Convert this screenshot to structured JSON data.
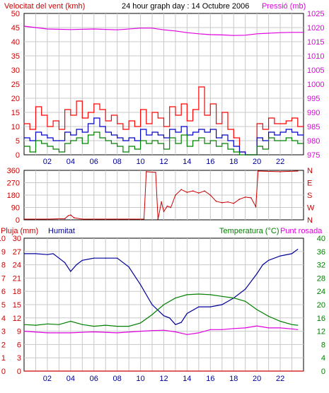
{
  "colors": {
    "background": "#ffffff",
    "grid": "#c8c8c8",
    "wind": "#ff0000",
    "gust": "#ff0000",
    "avg": "#0000c8",
    "low": "#008000",
    "pressure": "#e000e0",
    "dir": "#cc0000",
    "humidity": "#000099",
    "temperature": "#008000",
    "dewpoint": "#e000e0",
    "rain": "#cc0000",
    "axis_text": "#cc0000"
  },
  "chart_data": [
    {
      "type": "line",
      "title": "24 hour graph day : 14 Octubre 2006",
      "left_axis_label": "Velocitat del vent (kmh)",
      "right_axis_label": "Pressió (mb)",
      "left_ticks": [
        "0",
        "5",
        "10",
        "15",
        "20",
        "25",
        "30",
        "35",
        "40",
        "45",
        "50"
      ],
      "right_ticks": [
        "975",
        "980",
        "985",
        "990",
        "995",
        "1000",
        "1005",
        "1010",
        "1015",
        "1020",
        "1025"
      ],
      "ylim_left": [
        0,
        50
      ],
      "ylim_right": [
        975,
        1025
      ],
      "x_ticks": [
        "02",
        "04",
        "06",
        "08",
        "10",
        "12",
        "14",
        "16",
        "18",
        "20",
        "22"
      ],
      "xlim": [
        0,
        24
      ],
      "series": [
        {
          "key": "gust",
          "x": [
            0,
            0.5,
            1,
            1.5,
            2,
            2.5,
            3,
            3.5,
            4,
            4.5,
            5,
            5.5,
            6,
            6.5,
            7,
            7.5,
            8,
            8.5,
            9,
            9.5,
            10,
            10.5,
            11,
            11.5,
            12,
            12.5,
            13,
            13.5,
            14,
            14.5,
            15,
            15.5,
            16,
            16.5,
            17,
            17.5,
            18,
            18.5,
            19,
            19.5,
            20,
            20.5,
            21,
            21.5,
            22,
            22.5,
            23,
            23.5
          ],
          "values": [
            11,
            9,
            17,
            14,
            10,
            12,
            9,
            16,
            14,
            19,
            13,
            15,
            18,
            16,
            12,
            14,
            11,
            9,
            12,
            10,
            16,
            11,
            15,
            13,
            10,
            17,
            14,
            18,
            12,
            16,
            24,
            14,
            18,
            11,
            15,
            9,
            6,
            1,
            0,
            0,
            11,
            9,
            13,
            11,
            11,
            12,
            13,
            10
          ]
        },
        {
          "key": "avg",
          "x": [
            0,
            0.5,
            1,
            1.5,
            2,
            2.5,
            3,
            3.5,
            4,
            4.5,
            5,
            5.5,
            6,
            6.5,
            7,
            7.5,
            8,
            8.5,
            9,
            9.5,
            10,
            10.5,
            11,
            11.5,
            12,
            12.5,
            13,
            13.5,
            14,
            14.5,
            15,
            15.5,
            16,
            16.5,
            17,
            17.5,
            18,
            18.5,
            19,
            19.5,
            20,
            20.5,
            21,
            21.5,
            22,
            22.5,
            23,
            23.5
          ],
          "values": [
            6,
            5,
            8,
            7,
            6,
            5,
            5,
            8,
            7,
            9,
            8,
            11,
            13,
            10,
            8,
            7,
            6,
            5,
            6,
            5,
            9,
            7,
            8,
            7,
            6,
            9,
            8,
            10,
            7,
            8,
            9,
            8,
            9,
            6,
            7,
            5,
            3,
            1,
            0,
            0,
            6,
            5,
            8,
            7,
            8,
            9,
            8,
            7
          ]
        },
        {
          "key": "low",
          "x": [
            0,
            0.5,
            1,
            1.5,
            2,
            2.5,
            3,
            3.5,
            4,
            4.5,
            5,
            5.5,
            6,
            6.5,
            7,
            7.5,
            8,
            8.5,
            9,
            9.5,
            10,
            10.5,
            11,
            11.5,
            12,
            12.5,
            13,
            13.5,
            14,
            14.5,
            15,
            15.5,
            16,
            16.5,
            17,
            17.5,
            18,
            18.5,
            19,
            19.5,
            20,
            20.5,
            21,
            21.5,
            22,
            22.5,
            23,
            23.5
          ],
          "values": [
            3,
            1,
            5,
            4,
            3,
            2,
            1,
            4,
            5,
            6,
            4,
            7,
            8,
            6,
            5,
            4,
            3,
            1,
            3,
            2,
            5,
            4,
            5,
            4,
            2,
            6,
            4,
            7,
            3,
            5,
            6,
            4,
            5,
            3,
            4,
            2,
            1,
            0,
            0,
            0,
            3,
            2,
            6,
            5,
            5,
            6,
            5,
            4
          ]
        },
        {
          "key": "pressure",
          "x": [
            0,
            2,
            4,
            6,
            8,
            10,
            11,
            12,
            13,
            14,
            15,
            16,
            17,
            18,
            19,
            20,
            21,
            22,
            23,
            24
          ],
          "values": [
            1020.5,
            1019.5,
            1019.3,
            1019.5,
            1019.2,
            1019.8,
            1019.8,
            1019.2,
            1018.8,
            1018.2,
            1017.8,
            1017.5,
            1017.4,
            1017.2,
            1017.3,
            1017.8,
            1018,
            1018.2,
            1018.3,
            1018.3
          ]
        }
      ]
    },
    {
      "type": "scatter",
      "left_ticks": [
        "0",
        "90",
        "180",
        "270",
        "360"
      ],
      "right_ticks": [
        "N",
        "W",
        "S",
        "E",
        "N"
      ],
      "ylim": [
        0,
        360
      ],
      "xlim": [
        0,
        24
      ],
      "series": [
        {
          "key": "direction",
          "x": [
            0,
            2,
            3.5,
            3.8,
            4.0,
            4.3,
            5,
            8,
            10.3,
            10.5,
            11.3,
            11.5,
            11.8,
            12.0,
            12.3,
            12.6,
            13.0,
            13.5,
            14,
            14.5,
            15,
            15.5,
            16,
            16.5,
            17,
            17.5,
            18,
            18.5,
            19,
            19.5,
            19.9,
            20.1,
            22,
            23.5
          ],
          "values": [
            5,
            5,
            8,
            30,
            35,
            15,
            5,
            5,
            5,
            350,
            345,
            5,
            130,
            60,
            100,
            90,
            180,
            220,
            200,
            210,
            195,
            210,
            180,
            135,
            125,
            130,
            120,
            150,
            165,
            160,
            95,
            355,
            350,
            355
          ]
        }
      ]
    },
    {
      "type": "line",
      "left_axis_label": "Pluja (mm)",
      "left2_axis_label": "Humitat",
      "right_axis_label_temp": "Temperatura (°C)",
      "right_axis_label_dew": "Punt rosada",
      "rain_ticks": [
        "0",
        "1",
        "2",
        "3",
        "4",
        "5",
        "6",
        "7",
        "8",
        "9",
        "10"
      ],
      "humidity_ticks": [
        "0",
        "3",
        "6",
        "9",
        "12",
        "15",
        "18",
        "21",
        "24",
        "27",
        "30"
      ],
      "right_ticks": [
        "0",
        "4",
        "8",
        "12",
        "16",
        "20",
        "24",
        "28",
        "32",
        "36",
        "40"
      ],
      "temp_ticks": [
        "0",
        "4",
        "8",
        "12",
        "16",
        "20",
        "24",
        "28",
        "32",
        "36",
        "40"
      ],
      "ylim_left": [
        0,
        10
      ],
      "ylim_hum": [
        0,
        30
      ],
      "ylim_right": [
        0,
        40
      ],
      "xlim": [
        0,
        24
      ],
      "x_ticks": [
        "02",
        "04",
        "06",
        "08",
        "10",
        "12",
        "14",
        "16",
        "18",
        "20",
        "22"
      ],
      "series": [
        {
          "key": "humidity",
          "x": [
            0,
            1,
            2,
            2.5,
            3,
            3.5,
            4,
            4.5,
            5,
            6,
            7,
            8,
            9,
            10,
            11,
            12,
            12.5,
            13,
            13.5,
            14,
            15,
            16,
            17,
            18,
            19,
            20,
            20.5,
            21,
            22,
            23,
            23.5
          ],
          "values": [
            26.5,
            26.5,
            26.3,
            26.5,
            25.5,
            24.5,
            22.5,
            24,
            25,
            25.5,
            25.5,
            25.5,
            23.5,
            19.5,
            15,
            12.5,
            12,
            10.5,
            11,
            13,
            14.5,
            14.5,
            15,
            16.5,
            18.5,
            22,
            24,
            25,
            26,
            26.5,
            27.5
          ]
        },
        {
          "key": "temperature",
          "x": [
            0,
            1,
            2,
            3,
            4,
            5,
            6,
            7,
            8,
            9,
            10,
            11,
            12,
            13,
            14,
            15,
            16,
            17,
            18,
            19,
            20,
            21,
            22,
            23,
            23.5
          ],
          "values": [
            14,
            13.8,
            14.2,
            14,
            15,
            14,
            13.5,
            13.8,
            13.5,
            13.5,
            14.5,
            17,
            20,
            22,
            23,
            23.2,
            23,
            22.5,
            22,
            21,
            18.5,
            16.5,
            15,
            14,
            13.8
          ]
        },
        {
          "key": "dewpoint",
          "x": [
            0,
            2,
            4,
            6,
            8,
            10,
            11,
            12,
            13,
            14,
            15,
            16,
            17,
            18,
            19,
            20,
            21,
            22,
            23,
            23.5
          ],
          "values": [
            12,
            11.5,
            11.5,
            11.8,
            11.5,
            12,
            12.2,
            12.3,
            11.8,
            11,
            11.5,
            12.5,
            12.5,
            12.8,
            13,
            13.6,
            13,
            13,
            12.7,
            12.5
          ]
        },
        {
          "key": "rain",
          "x": [
            0,
            24
          ],
          "values": [
            0,
            0
          ]
        }
      ]
    }
  ]
}
